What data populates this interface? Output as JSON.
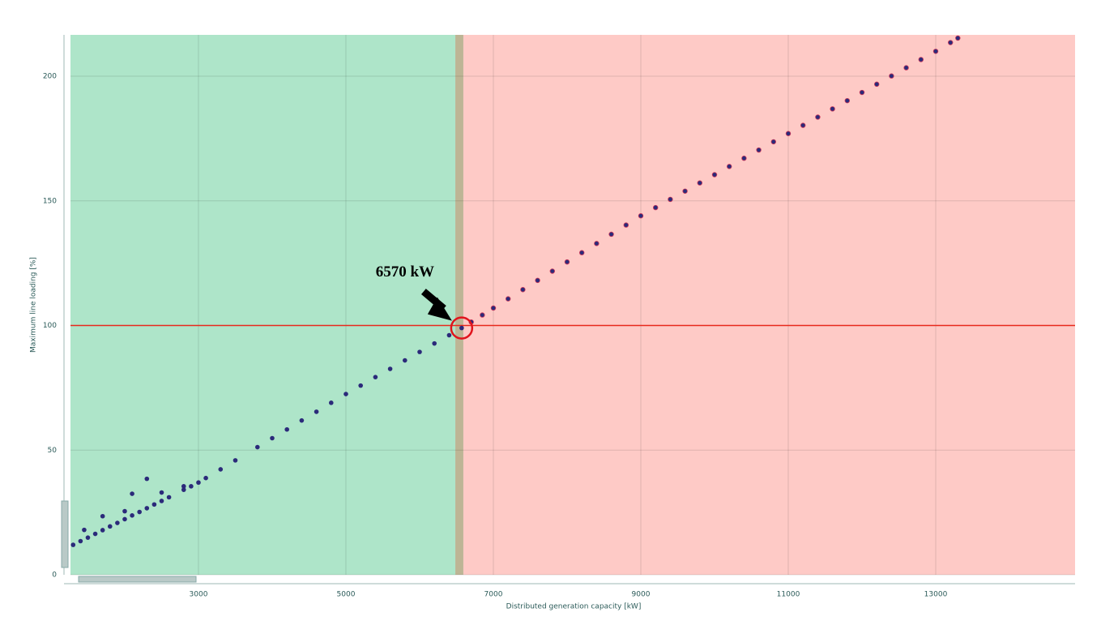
{
  "chart_data": {
    "type": "scatter",
    "xlabel": "Distributed generation capacity [kW]",
    "ylabel": "Maximum line loading [%]",
    "xlim": [
      1264,
      14890
    ],
    "ylim": [
      0,
      216.6
    ],
    "xticks": [
      3000,
      5000,
      7000,
      9000,
      11000,
      13000
    ],
    "yticks": [
      0,
      50,
      100,
      150,
      200
    ],
    "grid": true,
    "regions": [
      {
        "x0": 1264,
        "x1": 6484,
        "color": "#aee5c9"
      },
      {
        "x0": 6484,
        "x1": 6593,
        "color": "#bdb595"
      },
      {
        "x0": 6593,
        "x1": 14890,
        "color": "#fecac6"
      }
    ],
    "hline": {
      "value": 100,
      "color": "#e8291c"
    },
    "annotation": {
      "text": "6570 kW",
      "x": 6570,
      "y": 99,
      "color": "#e0141c"
    },
    "x": [
      1300,
      1400,
      1450,
      1500,
      1600,
      1700,
      1700,
      1800,
      1900,
      2000,
      2000,
      2100,
      2100,
      2200,
      2300,
      2300,
      2400,
      2500,
      2500,
      2600,
      2800,
      2800,
      2900,
      3000,
      3100,
      3300,
      3500,
      3800,
      4000,
      4200,
      4400,
      4600,
      4800,
      5000,
      5200,
      5400,
      5600,
      5800,
      6000,
      6200,
      6400,
      6570,
      6700,
      6850,
      7000,
      7200,
      7400,
      7600,
      7800,
      8000,
      8200,
      8400,
      8600,
      8800,
      9000,
      9200,
      9400,
      9600,
      9800,
      10000,
      10200,
      10400,
      10600,
      10800,
      11000,
      11200,
      11400,
      11600,
      11800,
      12000,
      12200,
      12400,
      12600,
      12800,
      13000,
      13200,
      13300
    ],
    "series": [
      {
        "name": "Maximum line loading",
        "color": "#2b2a7a",
        "values": [
          12,
          13.5,
          18,
          14.9,
          16.4,
          17.9,
          23.5,
          19.4,
          20.8,
          22.3,
          25.5,
          23.8,
          32.5,
          25.2,
          26.7,
          38.5,
          28.2,
          29.6,
          33,
          31.1,
          34.1,
          35.5,
          35.5,
          37,
          38.8,
          42.3,
          45.9,
          51.2,
          54.8,
          58.3,
          61.9,
          65.4,
          69,
          72.5,
          75.9,
          79.3,
          82.6,
          86,
          89.4,
          92.8,
          96.1,
          99,
          101.4,
          104.2,
          107,
          110.7,
          114.4,
          118.1,
          121.8,
          125.5,
          129.2,
          132.9,
          136.6,
          140.3,
          144,
          147.3,
          150.6,
          153.9,
          157.2,
          160.5,
          163.8,
          167.1,
          170.4,
          173.7,
          177,
          180.3,
          183.6,
          186.9,
          190.2,
          193.5,
          196.8,
          200.1,
          203.4,
          206.7,
          210,
          213.5,
          215.3
        ]
      }
    ]
  }
}
